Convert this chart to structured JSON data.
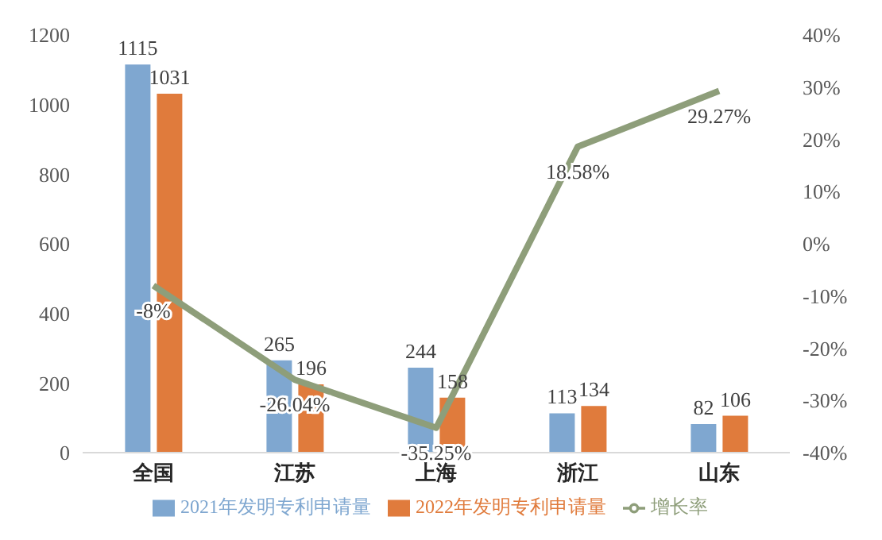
{
  "chart_data": {
    "type": "bar",
    "categories": [
      "全国",
      "江苏",
      "上海",
      "浙江",
      "山东"
    ],
    "series": [
      {
        "name": "2021年发明专利申请量",
        "color": "#7fa7d0",
        "values": [
          1115,
          265,
          244,
          113,
          82
        ],
        "value_labels": [
          "1115",
          "265",
          "244",
          "113",
          "82"
        ]
      },
      {
        "name": "2022年发明专利申请量",
        "color": "#e07b3c",
        "values": [
          1031,
          196,
          158,
          134,
          106
        ],
        "value_labels": [
          "1031",
          "196",
          "158",
          "134",
          "106"
        ]
      },
      {
        "name": "增长率",
        "type": "line",
        "axis": "y2",
        "color": "#8e9e7a",
        "values": [
          -8,
          -26.04,
          -35.25,
          18.58,
          29.27
        ],
        "value_labels": [
          "-8%",
          "-26.04%",
          "-35.25%",
          "18.58%",
          "29.27%"
        ]
      }
    ],
    "ylim": [
      0,
      1200
    ],
    "yticks": [
      0,
      200,
      400,
      600,
      800,
      1000,
      1200
    ],
    "y2lim": [
      -40,
      40
    ],
    "y2ticks": [
      {
        "value": -40,
        "label": "-40%"
      },
      {
        "value": -30,
        "label": "-30%"
      },
      {
        "value": -20,
        "label": "-20%"
      },
      {
        "value": -10,
        "label": "-10%"
      },
      {
        "value": 0,
        "label": "0%"
      },
      {
        "value": 10,
        "label": "10%"
      },
      {
        "value": 20,
        "label": "20%"
      },
      {
        "value": 30,
        "label": "30%"
      },
      {
        "value": 40,
        "label": "40%"
      }
    ],
    "legend": "bottom",
    "marker": "none"
  }
}
